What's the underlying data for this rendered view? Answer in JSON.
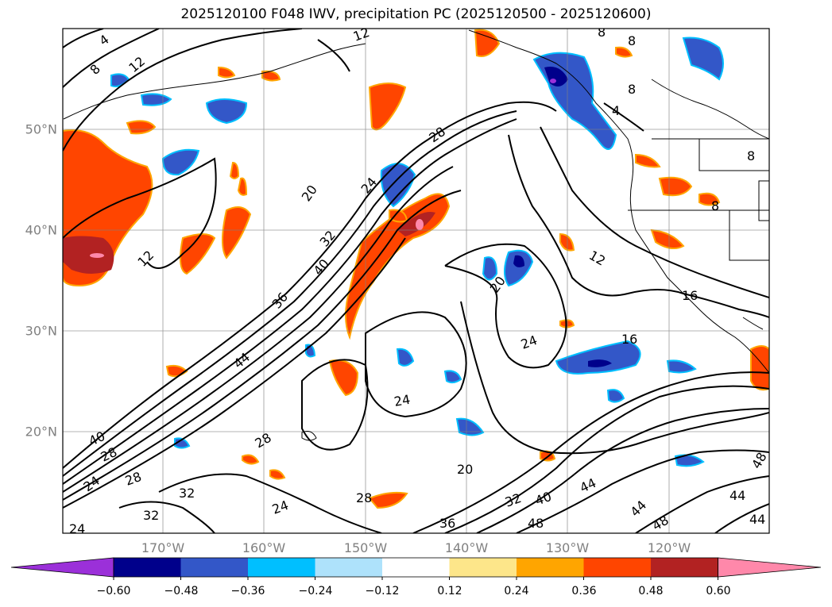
{
  "title": "2025120100 F048 IWV, precipitation PC (2025120500 - 2025120600)",
  "map": {
    "region": "Northeast Pacific and western North America",
    "longitude_labels": [
      "170°W",
      "160°W",
      "150°W",
      "140°W",
      "130°W",
      "120°W"
    ],
    "latitude_labels": [
      "50°N",
      "40°N",
      "30°N",
      "20°N"
    ],
    "gridlines": true,
    "iwv_contour_labels": [
      "4",
      "8",
      "12",
      "16",
      "20",
      "24",
      "28",
      "32",
      "36",
      "40",
      "44",
      "48"
    ],
    "visible_contour_labels": [
      "4",
      "8",
      "12",
      "12",
      "8",
      "8",
      "4",
      "8",
      "8",
      "8",
      "28",
      "20",
      "24",
      "32",
      "40",
      "36",
      "44",
      "12",
      "12",
      "20",
      "24",
      "16",
      "16",
      "24",
      "20",
      "24",
      "28",
      "40",
      "28",
      "24",
      "32",
      "32",
      "28",
      "24",
      "28",
      "36",
      "32",
      "40",
      "44",
      "48",
      "44",
      "48",
      "44",
      "44",
      "48"
    ]
  },
  "colorbar": {
    "ticks": [
      "−0.60",
      "−0.48",
      "−0.36",
      "−0.24",
      "−0.12",
      "0.12",
      "0.24",
      "0.36",
      "0.48",
      "0.60"
    ],
    "colors": [
      "#9b30d9",
      "#00008b",
      "#3357c8",
      "#00bfff",
      "#aee2fb",
      "#ffffff",
      "#fde68a",
      "#ffa500",
      "#ff4500",
      "#b22222",
      "#ff88aa"
    ],
    "extend": "both"
  }
}
